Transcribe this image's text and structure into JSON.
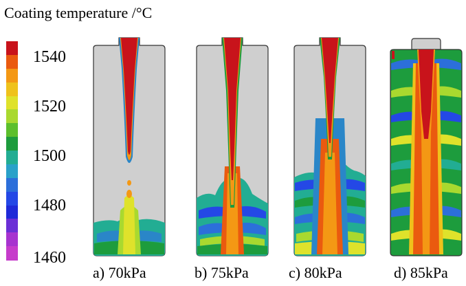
{
  "title": "Coating temperature /°C",
  "legend": {
    "ticks": [
      "1540",
      "1520",
      "1500",
      "1480",
      "1460"
    ],
    "colors": [
      "#c8131b",
      "#ea5a0f",
      "#f49814",
      "#efc21b",
      "#dfe22b",
      "#a9d92f",
      "#5cbf2c",
      "#1d9c3d",
      "#22ad93",
      "#2aa1c9",
      "#2c6fda",
      "#2448e6",
      "#1f2ad8",
      "#6b2fd6",
      "#a733cf",
      "#c63ccb"
    ]
  },
  "panels": [
    {
      "caption": "a) 70kPa",
      "pressure_kpa": 70
    },
    {
      "caption": "b) 75kPa",
      "pressure_kpa": 75
    },
    {
      "caption": "c) 80kPa",
      "pressure_kpa": 80
    },
    {
      "caption": "d) 85kPa",
      "pressure_kpa": 85
    }
  ]
}
